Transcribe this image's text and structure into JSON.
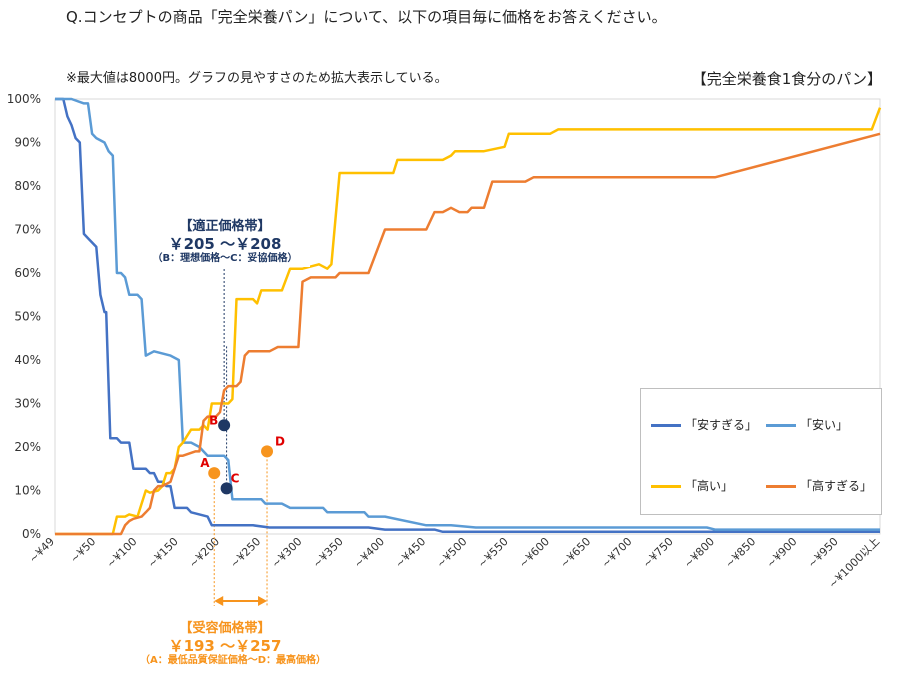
{
  "header": {
    "question": "Q.コンセプトの商品「完全栄養パン」について、以下の項目毎に価格をお答えください。",
    "note": "※最大値は8000円。グラフの見やすさのため拡大表示している。",
    "chart_title": "【完全栄養食1食分のパン】"
  },
  "annotations": {
    "optimal_title": "【適正価格帯】",
    "optimal_range": "￥205 ～￥208",
    "optimal_desc": "（B：理想価格～C：妥協価格）",
    "accept_title": "【受容価格帯】",
    "accept_range": "￥193 ～￥257",
    "accept_desc": "（A：最低品質保証価格～D：最高価格）"
  },
  "chart_data": {
    "type": "line",
    "title": "【完全栄養食1食分のパン】",
    "x_tick_labels": [
      "~¥49",
      "~¥50",
      "~¥100",
      "~¥150",
      "~¥200",
      "~¥250",
      "~¥300",
      "~¥350",
      "~¥400",
      "~¥450",
      "~¥500",
      "~¥550",
      "~¥600",
      "~¥650",
      "~¥700",
      "~¥750",
      "~¥800",
      "~¥850",
      "~¥900",
      "~¥950",
      "~¥1000以上"
    ],
    "x_range": [
      0,
      1000
    ],
    "y_range": [
      0,
      100
    ],
    "y_ticks": [
      0,
      10,
      20,
      30,
      40,
      50,
      60,
      70,
      80,
      90,
      100
    ],
    "y_tick_labels": [
      "0%",
      "10%",
      "20%",
      "30%",
      "40%",
      "50%",
      "60%",
      "70%",
      "80%",
      "90%",
      "100%"
    ],
    "gridlines": false,
    "legend_position": "bottom-right",
    "series": [
      {
        "name": "「安すぎる」",
        "color": "#4472c4",
        "points": [
          [
            0,
            100
          ],
          [
            10,
            100
          ],
          [
            15,
            96
          ],
          [
            20,
            94
          ],
          [
            25,
            91
          ],
          [
            30,
            90
          ],
          [
            35,
            69
          ],
          [
            40,
            68
          ],
          [
            45,
            67
          ],
          [
            50,
            66
          ],
          [
            55,
            55
          ],
          [
            60,
            51
          ],
          [
            62,
            51
          ],
          [
            67,
            22
          ],
          [
            75,
            22
          ],
          [
            80,
            21
          ],
          [
            90,
            21
          ],
          [
            95,
            15
          ],
          [
            100,
            15
          ],
          [
            110,
            15
          ],
          [
            115,
            14
          ],
          [
            120,
            14
          ],
          [
            125,
            12
          ],
          [
            130,
            12
          ],
          [
            135,
            11
          ],
          [
            140,
            11
          ],
          [
            145,
            6
          ],
          [
            150,
            6
          ],
          [
            160,
            6
          ],
          [
            165,
            5
          ],
          [
            175,
            4.5
          ],
          [
            185,
            4
          ],
          [
            190,
            2
          ],
          [
            240,
            2
          ],
          [
            260,
            1.5
          ],
          [
            380,
            1.5
          ],
          [
            400,
            1
          ],
          [
            460,
            1
          ],
          [
            470,
            0.5
          ],
          [
            990,
            0.5
          ],
          [
            1000,
            0.5
          ]
        ]
      },
      {
        "name": "「安い」",
        "color": "#5b9bd5",
        "points": [
          [
            0,
            100
          ],
          [
            20,
            100
          ],
          [
            35,
            99
          ],
          [
            40,
            99
          ],
          [
            45,
            92
          ],
          [
            50,
            91
          ],
          [
            60,
            90
          ],
          [
            65,
            88
          ],
          [
            70,
            87
          ],
          [
            75,
            60
          ],
          [
            80,
            60
          ],
          [
            85,
            59
          ],
          [
            90,
            55
          ],
          [
            100,
            55
          ],
          [
            105,
            54
          ],
          [
            110,
            41
          ],
          [
            120,
            42
          ],
          [
            140,
            41
          ],
          [
            150,
            40
          ],
          [
            155,
            21
          ],
          [
            160,
            21
          ],
          [
            165,
            21
          ],
          [
            175,
            20
          ],
          [
            180,
            19
          ],
          [
            185,
            18
          ],
          [
            200,
            18
          ],
          [
            205,
            18
          ],
          [
            210,
            17
          ],
          [
            215,
            8
          ],
          [
            220,
            8
          ],
          [
            250,
            8
          ],
          [
            255,
            7
          ],
          [
            275,
            7
          ],
          [
            285,
            6
          ],
          [
            300,
            6
          ],
          [
            325,
            6
          ],
          [
            330,
            5
          ],
          [
            360,
            5
          ],
          [
            375,
            5
          ],
          [
            380,
            4
          ],
          [
            400,
            4
          ],
          [
            450,
            2
          ],
          [
            480,
            2
          ],
          [
            510,
            1.5
          ],
          [
            790,
            1.5
          ],
          [
            800,
            1
          ],
          [
            990,
            1
          ],
          [
            1000,
            1
          ]
        ]
      },
      {
        "name": "「高い」",
        "color": "#ffc000",
        "points": [
          [
            0,
            0
          ],
          [
            60,
            0
          ],
          [
            70,
            0
          ],
          [
            75,
            4
          ],
          [
            85,
            4
          ],
          [
            90,
            4.5
          ],
          [
            100,
            4
          ],
          [
            110,
            10
          ],
          [
            115,
            9.5
          ],
          [
            125,
            10
          ],
          [
            130,
            11
          ],
          [
            135,
            14
          ],
          [
            140,
            14
          ],
          [
            145,
            15
          ],
          [
            150,
            20
          ],
          [
            155,
            21
          ],
          [
            165,
            24
          ],
          [
            175,
            24
          ],
          [
            180,
            25
          ],
          [
            185,
            24
          ],
          [
            190,
            30
          ],
          [
            200,
            30
          ],
          [
            210,
            30
          ],
          [
            215,
            31
          ],
          [
            220,
            54
          ],
          [
            230,
            54
          ],
          [
            240,
            54
          ],
          [
            245,
            53
          ],
          [
            250,
            56
          ],
          [
            260,
            56
          ],
          [
            270,
            56
          ],
          [
            275,
            56
          ],
          [
            285,
            61
          ],
          [
            300,
            61
          ],
          [
            320,
            62
          ],
          [
            330,
            61
          ],
          [
            335,
            62
          ],
          [
            345,
            83
          ],
          [
            360,
            83
          ],
          [
            400,
            83
          ],
          [
            410,
            83
          ],
          [
            415,
            86
          ],
          [
            430,
            86
          ],
          [
            470,
            86
          ],
          [
            480,
            87
          ],
          [
            485,
            88
          ],
          [
            495,
            88
          ],
          [
            520,
            88
          ],
          [
            545,
            89
          ],
          [
            550,
            92
          ],
          [
            560,
            92
          ],
          [
            600,
            92
          ],
          [
            610,
            93
          ],
          [
            620,
            93
          ],
          [
            720,
            93
          ],
          [
            730,
            93
          ],
          [
            740,
            93
          ],
          [
            745,
            93
          ],
          [
            760,
            93
          ],
          [
            790,
            93
          ],
          [
            800,
            93
          ],
          [
            860,
            93
          ],
          [
            990,
            93
          ],
          [
            1000,
            98
          ]
        ]
      },
      {
        "name": "「高すぎる」",
        "color": "#ed7d31",
        "points": [
          [
            0,
            0
          ],
          [
            60,
            0
          ],
          [
            70,
            0
          ],
          [
            80,
            0
          ],
          [
            85,
            2
          ],
          [
            90,
            3
          ],
          [
            95,
            3.5
          ],
          [
            105,
            4
          ],
          [
            110,
            5
          ],
          [
            115,
            6
          ],
          [
            120,
            10
          ],
          [
            125,
            11
          ],
          [
            130,
            11
          ],
          [
            140,
            12
          ],
          [
            150,
            18
          ],
          [
            155,
            18
          ],
          [
            170,
            19
          ],
          [
            175,
            19
          ],
          [
            180,
            26
          ],
          [
            185,
            27
          ],
          [
            195,
            27
          ],
          [
            200,
            28
          ],
          [
            205,
            33
          ],
          [
            210,
            34
          ],
          [
            220,
            34
          ],
          [
            225,
            35
          ],
          [
            230,
            41
          ],
          [
            235,
            42
          ],
          [
            260,
            42
          ],
          [
            270,
            43
          ],
          [
            275,
            43
          ],
          [
            290,
            43
          ],
          [
            295,
            43
          ],
          [
            300,
            58
          ],
          [
            310,
            59
          ],
          [
            330,
            59
          ],
          [
            340,
            59
          ],
          [
            345,
            60
          ],
          [
            360,
            60
          ],
          [
            380,
            60
          ],
          [
            400,
            70
          ],
          [
            410,
            70
          ],
          [
            430,
            70
          ],
          [
            440,
            70
          ],
          [
            450,
            70
          ],
          [
            460,
            74
          ],
          [
            470,
            74
          ],
          [
            480,
            75
          ],
          [
            490,
            74
          ],
          [
            500,
            74
          ],
          [
            505,
            75
          ],
          [
            520,
            75
          ],
          [
            530,
            81
          ],
          [
            545,
            81
          ],
          [
            560,
            81
          ],
          [
            570,
            81
          ],
          [
            580,
            82
          ],
          [
            600,
            82
          ],
          [
            620,
            82
          ],
          [
            630,
            82
          ],
          [
            690,
            82
          ],
          [
            700,
            82
          ],
          [
            710,
            82
          ],
          [
            730,
            82
          ],
          [
            790,
            82
          ],
          [
            800,
            82
          ],
          [
            1000,
            92
          ]
        ]
      }
    ],
    "marked_points": [
      {
        "label": "A",
        "x": 193,
        "y": 14,
        "color": "#f7941d"
      },
      {
        "label": "B",
        "x": 205,
        "y": 25,
        "color": "#1f3864"
      },
      {
        "label": "C",
        "x": 208,
        "y": 10.5,
        "color": "#1f3864"
      },
      {
        "label": "D",
        "x": 257,
        "y": 19,
        "color": "#f7941d"
      }
    ]
  }
}
